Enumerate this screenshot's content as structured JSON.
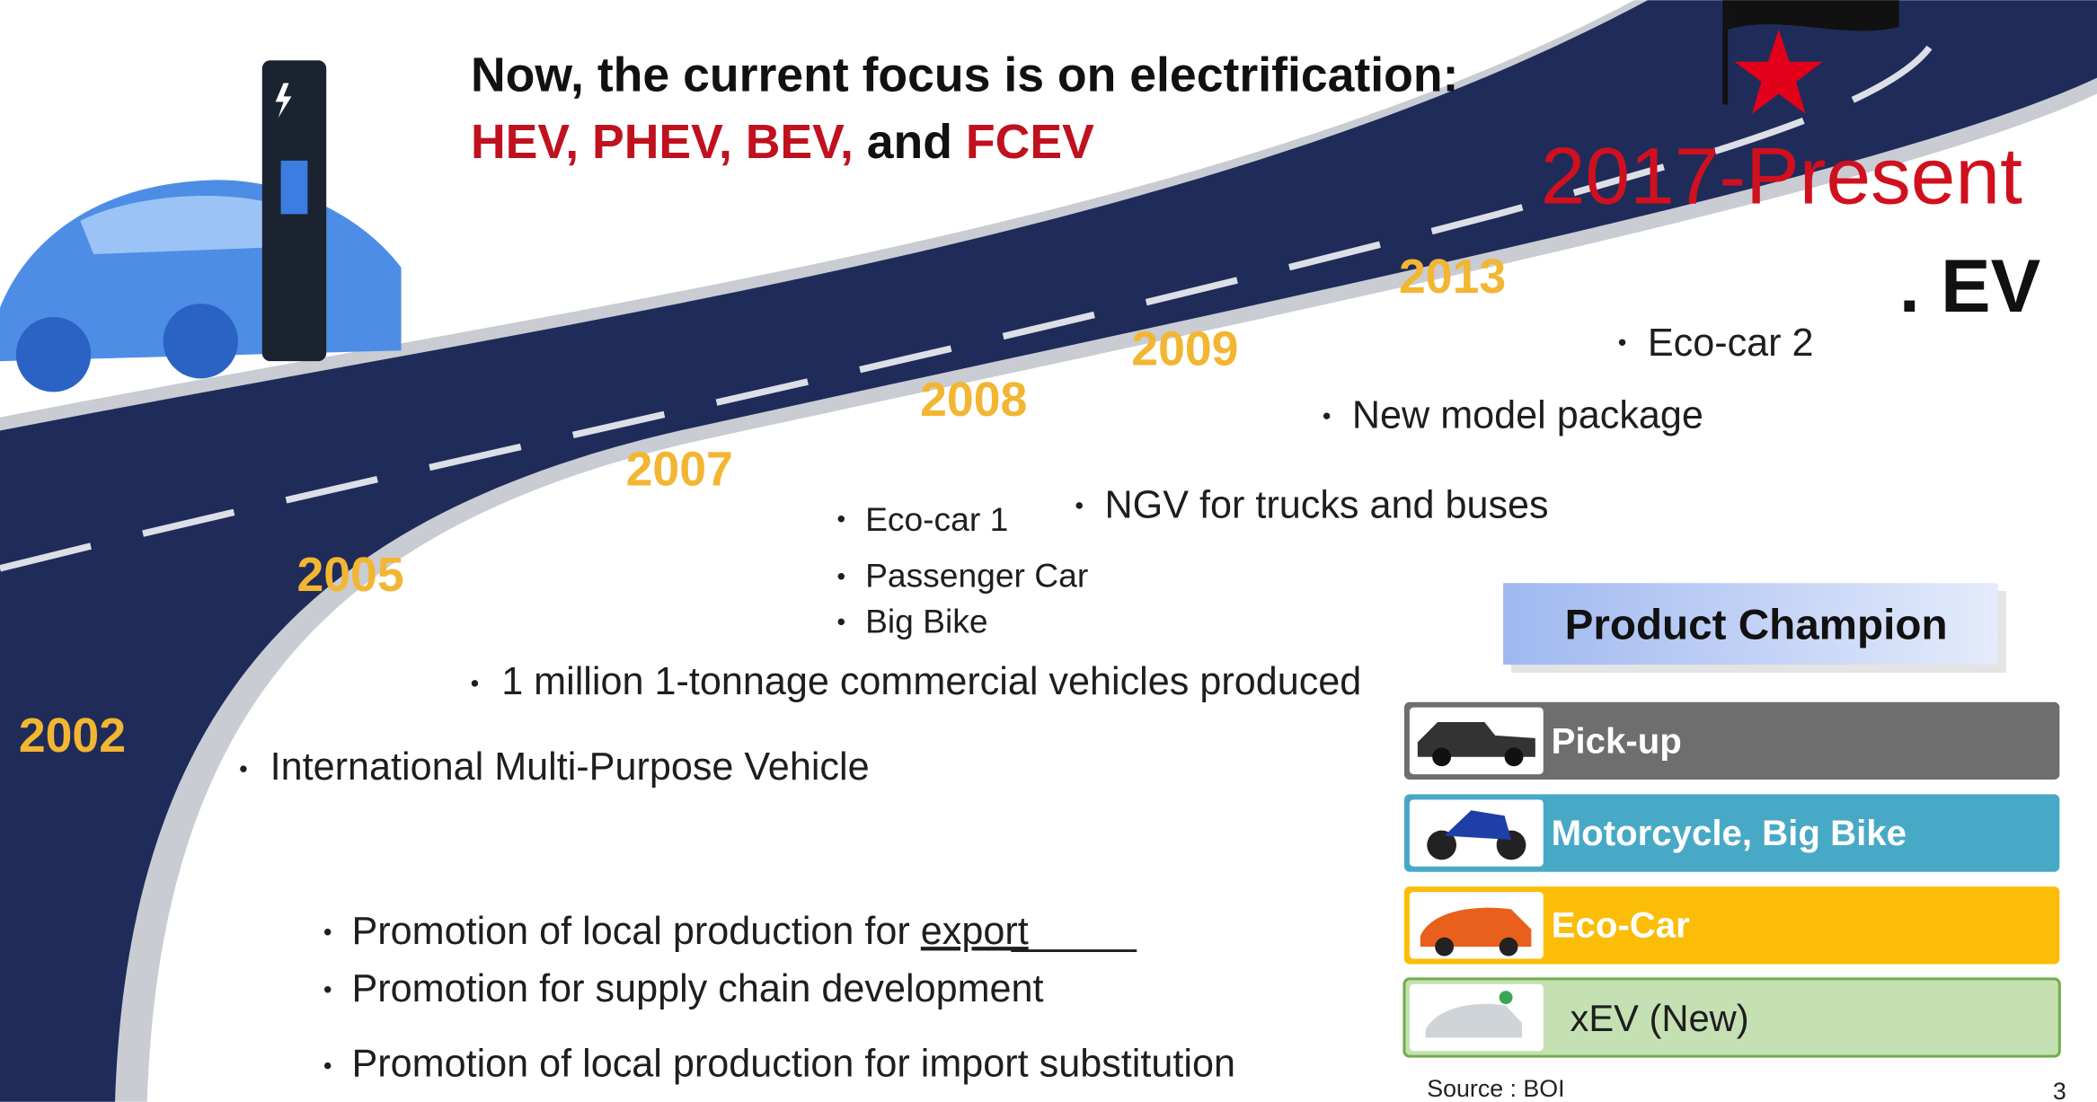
{
  "headline": {
    "line1": "Now, the current focus is on electrification:",
    "line2": [
      "HEV, PHEV, BEV,",
      "and",
      "FCEV"
    ]
  },
  "period": "2017-Present",
  "ev": ". EV",
  "years": [
    "2002",
    "2005",
    "2007",
    "2008",
    "2009",
    "2013"
  ],
  "bullets": {
    "eco_car_2": "Eco-car 2",
    "new_model": "New model package",
    "ngv": "NGV for trucks and buses",
    "eco_car_1": "Eco-car 1",
    "passenger_car": "Passenger Car",
    "big_bike": "Big Bike",
    "one_million": "1 million 1-tonnage commercial vehicles produced",
    "imv": "International Multi-Purpose Vehicle",
    "promotion_export": [
      "Promotion of local production for",
      "export"
    ],
    "promotion_supply": "Promotion for supply chain development",
    "promotion_import": "Promotion of local production for import substitution"
  },
  "product_champion": {
    "title": "Product Champion",
    "items": [
      "Pick-up",
      "Motorcycle, Big Bike",
      "Eco-Car",
      "xEV (New)"
    ]
  },
  "source": "Source :  BOI",
  "page_number": "3"
}
